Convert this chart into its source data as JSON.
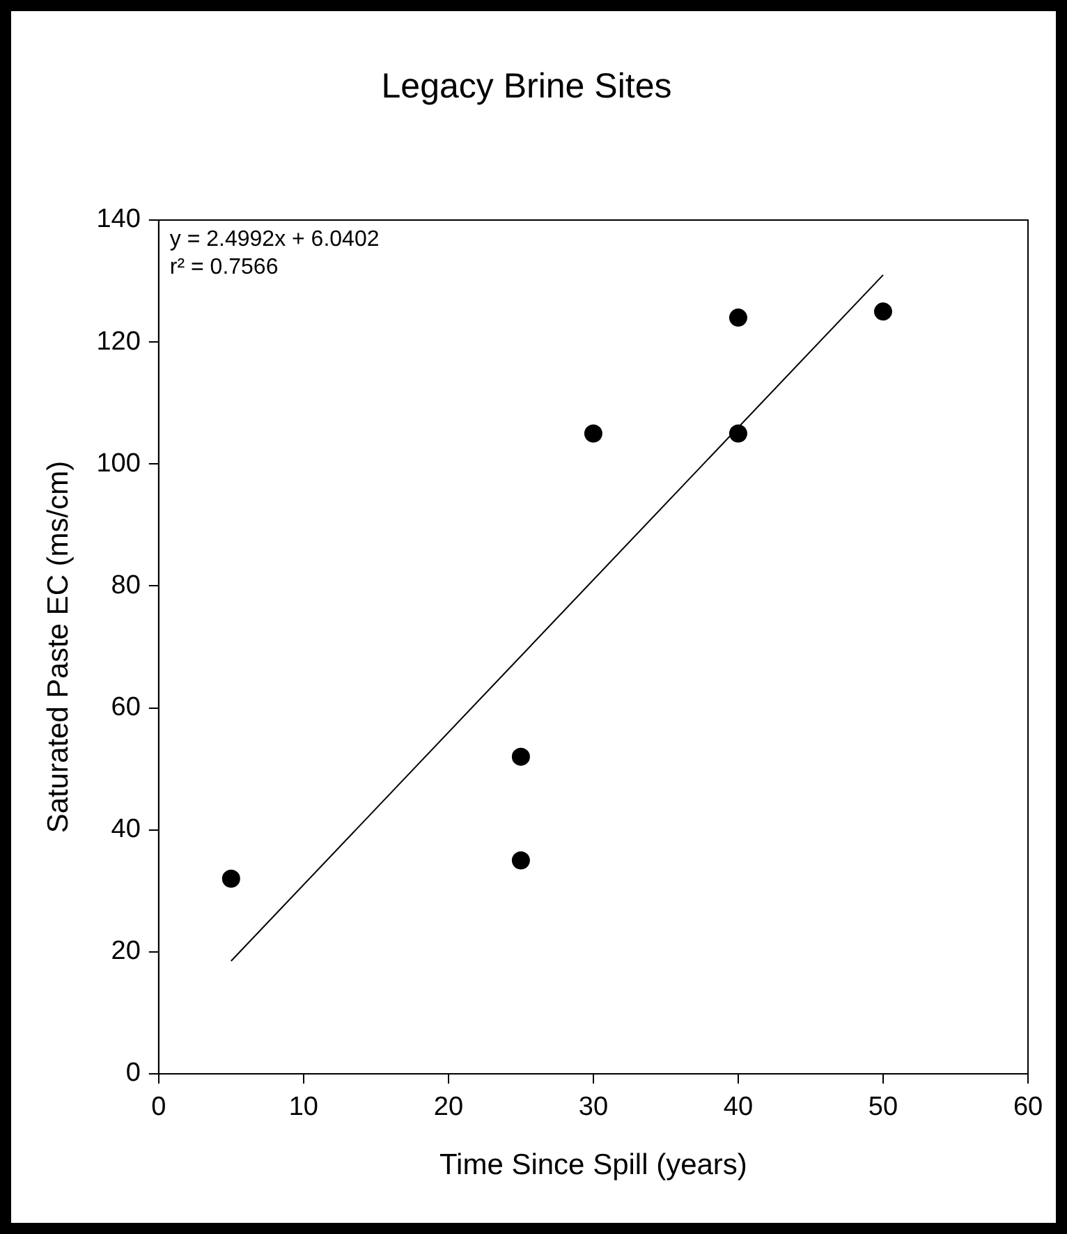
{
  "chart_data": {
    "type": "scatter",
    "title": "Legacy Brine Sites",
    "xlabel": "Time Since Spill (years)",
    "ylabel": "Saturated Paste EC (ms/cm)",
    "xlim": [
      0,
      60
    ],
    "xticks": [
      0,
      10,
      20,
      30,
      40,
      50,
      60
    ],
    "ylim": [
      0,
      140
    ],
    "yticks": [
      0,
      20,
      40,
      60,
      80,
      100,
      120,
      140
    ],
    "annotations": [
      "y = 2.4992x + 6.0402",
      "r² = 0.7566"
    ],
    "series": [
      {
        "type": "scatter",
        "color": "#000000",
        "marker": "circle",
        "x": [
          5,
          25,
          25,
          30,
          40,
          40,
          50
        ],
        "values": [
          32,
          52,
          35,
          105,
          124,
          105,
          125
        ]
      },
      {
        "type": "line",
        "color": "#000000",
        "marker": "none",
        "line_style": "solid",
        "x": [
          5,
          50
        ],
        "values": [
          18.5,
          131
        ]
      }
    ]
  }
}
